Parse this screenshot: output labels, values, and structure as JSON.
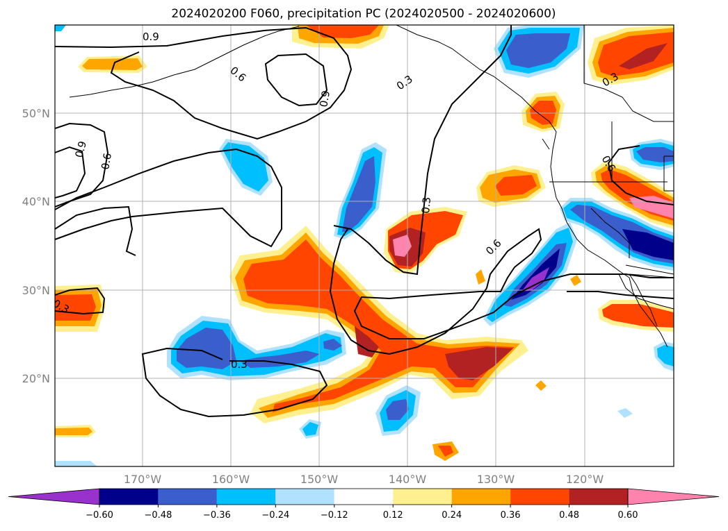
{
  "title": "2024020200 F060, precipitation PC (2024020500 - 2024020600)",
  "map": {
    "lat_ticks": [
      "50°N",
      "40°N",
      "30°N",
      "20°N"
    ],
    "lon_ticks": [
      "170°W",
      "160°W",
      "150°W",
      "140°W",
      "130°W",
      "120°W"
    ],
    "contour_labels": [
      "0.9",
      "0.6",
      "0.9",
      "0.9",
      "0.6",
      "0.3",
      "0.3",
      "0.3",
      "0.6",
      "0.3",
      "0.3",
      "0.6"
    ]
  },
  "colorbar": {
    "colors": [
      "#9932cc",
      "#00008b",
      "#3a5fcd",
      "#00bfff",
      "#b0e2ff",
      "#ffffff",
      "#fff08f",
      "#ffa500",
      "#ff4500",
      "#b22222",
      "#ff83ac"
    ],
    "ticks": [
      "−0.60",
      "−0.48",
      "−0.36",
      "−0.24",
      "−0.12",
      "0.12",
      "0.24",
      "0.36",
      "0.48",
      "0.60"
    ]
  }
}
